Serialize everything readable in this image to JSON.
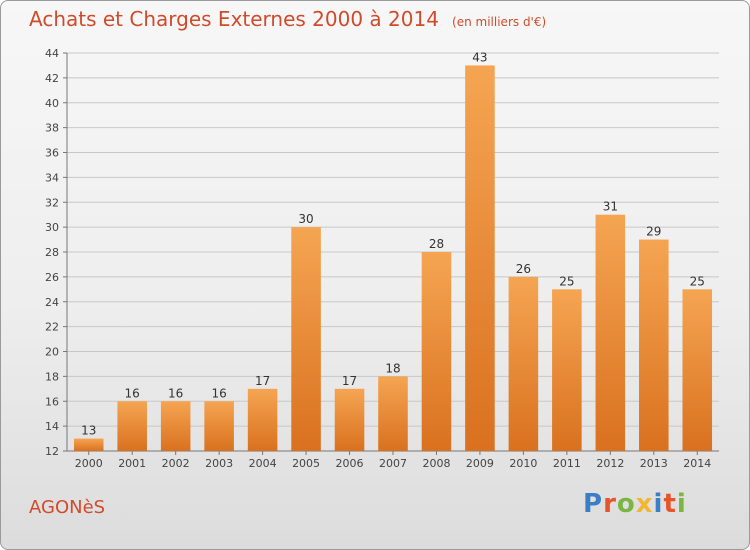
{
  "header": {
    "title": "Achats et Charges Externes 2000 à 2014",
    "unit": "(en milliers d'€)"
  },
  "footer": {
    "commune": "AGONèS",
    "brand": "Proxiti",
    "brand_colors": [
      "#3a7fc4",
      "#e8542a",
      "#7bb642",
      "#f2b630",
      "#3a7fc4",
      "#e8542a",
      "#7bb642"
    ]
  },
  "colors": {
    "bar_light": "#f5a552",
    "bar_dark": "#d9711f",
    "title": "#d04b2c",
    "grid": "#c8c8c8"
  },
  "chart_data": {
    "type": "bar",
    "title": "Achats et Charges Externes 2000 à 2014",
    "xlabel": "",
    "ylabel": "",
    "categories": [
      "2000",
      "2001",
      "2002",
      "2003",
      "2004",
      "2005",
      "2006",
      "2007",
      "2008",
      "2009",
      "2010",
      "2011",
      "2012",
      "2013",
      "2014"
    ],
    "values": [
      13,
      16,
      16,
      16,
      17,
      30,
      17,
      18,
      28,
      43,
      26,
      25,
      31,
      29,
      25
    ],
    "ylim": [
      12,
      44
    ],
    "yticks": [
      12,
      14,
      16,
      18,
      20,
      22,
      24,
      26,
      28,
      30,
      32,
      34,
      36,
      38,
      40,
      42,
      44
    ],
    "grid": true,
    "data_labels": true
  }
}
